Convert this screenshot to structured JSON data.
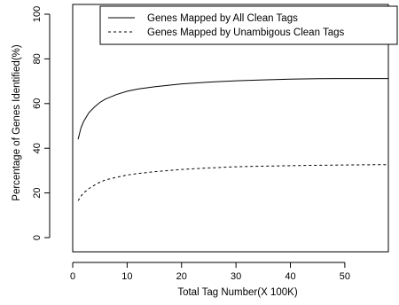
{
  "chart_data": {
    "type": "line",
    "xlabel": "Total Tag Number(X 100K)",
    "ylabel": "Percentage of Genes Identified(%)",
    "xlim": [
      0,
      58
    ],
    "ylim": [
      0,
      100
    ],
    "xticks": [
      0,
      10,
      20,
      30,
      40,
      50
    ],
    "yticks": [
      0,
      20,
      40,
      60,
      80,
      100
    ],
    "grid": false,
    "legend_position": "top-right",
    "series": [
      {
        "name": "Genes Mapped by All Clean Tags",
        "line_style": "solid",
        "color": "#000000",
        "x": [
          1,
          1.5,
          2,
          3,
          4,
          5,
          6,
          8,
          10,
          12,
          15,
          20,
          25,
          30,
          35,
          40,
          45,
          50,
          55,
          58
        ],
        "y": [
          44,
          49,
          52,
          56,
          58.5,
          60.5,
          62,
          64,
          65.5,
          66.5,
          67.5,
          68.8,
          69.6,
          70.2,
          70.6,
          70.9,
          71.1,
          71.2,
          71.2,
          71.2
        ]
      },
      {
        "name": "Genes Mapped by Unambigous Clean Tags",
        "line_style": "dashed",
        "color": "#000000",
        "x": [
          1,
          1.5,
          2,
          3,
          4,
          5,
          6,
          8,
          10,
          12,
          15,
          20,
          25,
          30,
          35,
          40,
          45,
          50,
          55,
          58
        ],
        "y": [
          16.5,
          18.5,
          20,
          22,
          23.5,
          24.8,
          25.8,
          27,
          28,
          28.7,
          29.5,
          30.5,
          31.2,
          31.7,
          32,
          32.2,
          32.4,
          32.5,
          32.6,
          32.6
        ]
      }
    ]
  }
}
